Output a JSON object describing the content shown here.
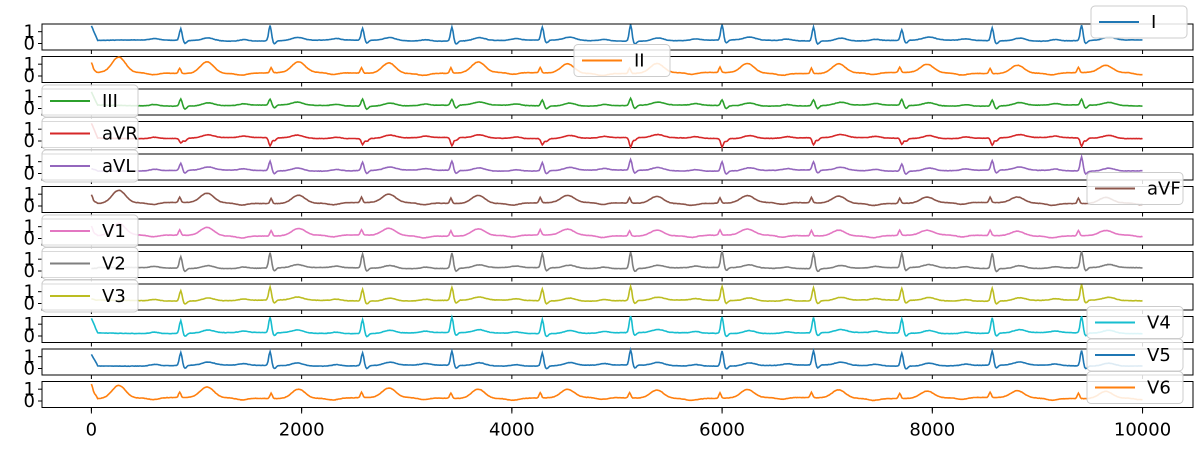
{
  "chart_data": {
    "type": "line",
    "layout": "12 stacked panels sharing x-axis",
    "x_range": [
      0,
      10000
    ],
    "xlim": [
      -470,
      10480
    ],
    "x_ticks": [
      0,
      2000,
      4000,
      6000,
      8000,
      10000
    ],
    "x_tick_labels": [
      "0",
      "2000",
      "4000",
      "6000",
      "8000",
      "10000"
    ],
    "y_ticks": [
      0,
      1
    ],
    "y_tick_labels": [
      "0",
      "1"
    ],
    "beats_approx": 12,
    "series": [
      {
        "name": "I",
        "color": "#1f77b4",
        "legend": "top-right",
        "start": 1.5,
        "peaks": [
          [
            850,
            1.0
          ],
          [
            1700,
            1.3
          ],
          [
            2580,
            1.0
          ],
          [
            3430,
            1.2
          ],
          [
            4290,
            1.1
          ],
          [
            5130,
            1.4
          ],
          [
            6000,
            1.3
          ],
          [
            6870,
            1.2
          ],
          [
            7710,
            0.9
          ],
          [
            8570,
            1.1
          ],
          [
            9420,
            1.3
          ]
        ]
      },
      {
        "name": "II",
        "color": "#ff7f0e",
        "legend": "upper-center",
        "start": 0.7,
        "peaks": [
          [
            260,
            1.5
          ],
          [
            1100,
            1.2
          ],
          [
            1970,
            1.1
          ],
          [
            2830,
            1.1
          ],
          [
            3680,
            1.1
          ],
          [
            4530,
            1.0
          ],
          [
            5380,
            1.0
          ],
          [
            6240,
            1.0
          ],
          [
            7110,
            1.0
          ],
          [
            7950,
            0.9
          ],
          [
            8810,
            0.9
          ],
          [
            9650,
            0.8
          ]
        ]
      },
      {
        "name": "III",
        "color": "#2ca02c",
        "legend": "center-left",
        "start": 1.4,
        "peaks": [
          [
            850,
            0.6
          ],
          [
            1700,
            0.5
          ],
          [
            2580,
            0.6
          ],
          [
            3430,
            0.5
          ],
          [
            4290,
            0.5
          ],
          [
            5130,
            0.6
          ],
          [
            6000,
            0.5
          ],
          [
            6870,
            0.5
          ],
          [
            7710,
            0.5
          ],
          [
            8570,
            0.5
          ],
          [
            9420,
            0.5
          ]
        ]
      },
      {
        "name": "aVR",
        "color": "#d62728",
        "legend": "center-left",
        "start": 1.5,
        "peaks": [
          [
            850,
            -0.4
          ],
          [
            1700,
            -0.7
          ],
          [
            2580,
            -0.5
          ],
          [
            3430,
            -0.7
          ],
          [
            4290,
            -0.5
          ],
          [
            5130,
            -0.8
          ],
          [
            6000,
            -0.7
          ],
          [
            6870,
            -0.6
          ],
          [
            7710,
            -0.5
          ],
          [
            8570,
            -0.6
          ],
          [
            9420,
            -0.7
          ]
        ]
      },
      {
        "name": "aVL",
        "color": "#9467bd",
        "legend": "center-left",
        "start": 0.4,
        "peaks": [
          [
            850,
            0.6
          ],
          [
            1700,
            0.8
          ],
          [
            2580,
            0.7
          ],
          [
            3430,
            0.8
          ],
          [
            4290,
            0.7
          ],
          [
            5130,
            0.9
          ],
          [
            6000,
            0.8
          ],
          [
            6870,
            0.7
          ],
          [
            7710,
            0.6
          ],
          [
            8570,
            0.8
          ],
          [
            9420,
            1.2
          ]
        ]
      },
      {
        "name": "aVF",
        "color": "#8c564b",
        "legend": "center-right",
        "start": 0.5,
        "peaks": [
          [
            260,
            1.3
          ],
          [
            1100,
            1.0
          ],
          [
            1970,
            0.9
          ],
          [
            2830,
            0.9
          ],
          [
            3680,
            0.9
          ],
          [
            4530,
            0.8
          ],
          [
            5380,
            0.8
          ],
          [
            6240,
            0.8
          ],
          [
            7110,
            0.8
          ],
          [
            7950,
            0.7
          ],
          [
            8810,
            0.7
          ],
          [
            9650,
            0.7
          ]
        ]
      },
      {
        "name": "V1",
        "color": "#e377c2",
        "legend": "center-left",
        "start": 0.6,
        "peaks": [
          [
            260,
            1.2
          ],
          [
            1100,
            0.9
          ],
          [
            1970,
            0.8
          ],
          [
            2830,
            0.8
          ],
          [
            3680,
            0.8
          ],
          [
            4530,
            0.7
          ],
          [
            5380,
            0.7
          ],
          [
            6240,
            0.7
          ],
          [
            7110,
            0.7
          ],
          [
            7950,
            0.6
          ],
          [
            8810,
            0.6
          ],
          [
            9650,
            0.6
          ]
        ]
      },
      {
        "name": "V2",
        "color": "#7f7f7f",
        "legend": "center-left",
        "start": 0.2,
        "peaks": [
          [
            850,
            1.0
          ],
          [
            1700,
            1.3
          ],
          [
            2580,
            1.2
          ],
          [
            3430,
            1.3
          ],
          [
            4290,
            1.2
          ],
          [
            5130,
            1.4
          ],
          [
            6000,
            1.4
          ],
          [
            6870,
            1.3
          ],
          [
            7710,
            1.2
          ],
          [
            8570,
            1.3
          ],
          [
            9420,
            1.4
          ]
        ]
      },
      {
        "name": "V3",
        "color": "#bcbd22",
        "legend": "center-left",
        "start": 0.4,
        "peaks": [
          [
            850,
            0.9
          ],
          [
            1700,
            1.1
          ],
          [
            2580,
            1.0
          ],
          [
            3430,
            1.1
          ],
          [
            4290,
            1.0
          ],
          [
            5130,
            1.2
          ],
          [
            6000,
            1.2
          ],
          [
            6870,
            1.1
          ],
          [
            7710,
            1.0
          ],
          [
            8570,
            1.1
          ],
          [
            9420,
            1.3
          ]
        ]
      },
      {
        "name": "V4",
        "color": "#17becf",
        "legend": "lower-right",
        "start": 1.5,
        "peaks": [
          [
            850,
            1.1
          ],
          [
            1700,
            1.3
          ],
          [
            2580,
            1.2
          ],
          [
            3430,
            1.3
          ],
          [
            4290,
            1.2
          ],
          [
            5130,
            1.4
          ],
          [
            6000,
            1.4
          ],
          [
            6870,
            1.3
          ],
          [
            7710,
            1.2
          ],
          [
            8570,
            1.3
          ],
          [
            9420,
            1.4
          ]
        ]
      },
      {
        "name": "V5",
        "color": "#1f77b4",
        "legend": "lower-right",
        "start": 1.2,
        "peaks": [
          [
            850,
            1.1
          ],
          [
            1700,
            1.2
          ],
          [
            2580,
            1.1
          ],
          [
            3430,
            1.2
          ],
          [
            4290,
            1.1
          ],
          [
            5130,
            1.3
          ],
          [
            6000,
            1.3
          ],
          [
            6870,
            1.2
          ],
          [
            7710,
            1.1
          ],
          [
            8570,
            1.2
          ],
          [
            9420,
            1.3
          ]
        ]
      },
      {
        "name": "V6",
        "color": "#ff7f0e",
        "legend": "lower-right",
        "start": 1.0,
        "peaks": [
          [
            260,
            1.3
          ],
          [
            1100,
            1.1
          ],
          [
            1970,
            1.0
          ],
          [
            2830,
            1.0
          ],
          [
            3680,
            1.0
          ],
          [
            4530,
            0.9
          ],
          [
            5380,
            0.9
          ],
          [
            6240,
            0.9
          ],
          [
            7110,
            0.9
          ],
          [
            7950,
            0.8
          ],
          [
            8810,
            0.8
          ],
          [
            9650,
            0.8
          ]
        ]
      }
    ]
  }
}
